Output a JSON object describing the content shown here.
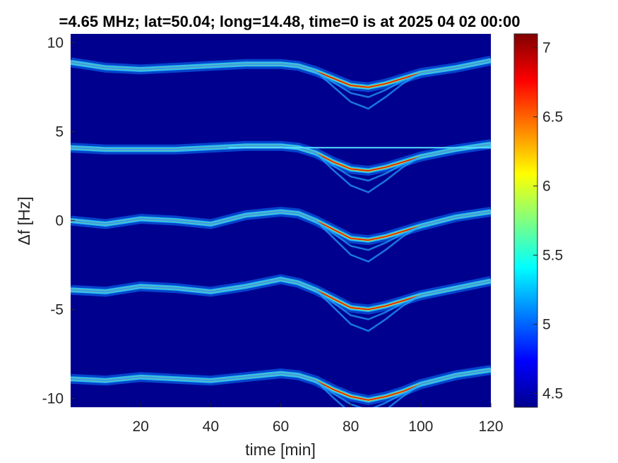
{
  "chart_data": {
    "type": "heatmap",
    "title": "=4.65 MHz;  lat=50.04; long=14.48, time=0 is at 2025 04 02 00:00",
    "xlabel": "time [min]",
    "ylabel": "Δf [Hz]",
    "xlim": [
      0,
      120
    ],
    "ylim": [
      -10.5,
      10.5
    ],
    "x_ticks": [
      20,
      40,
      60,
      80,
      100,
      120
    ],
    "x_tick_labels": [
      "20",
      "40",
      "60",
      "80",
      "100",
      "120"
    ],
    "y_ticks": [
      10,
      5,
      0,
      -5,
      -10
    ],
    "y_tick_labels": [
      "10",
      "5",
      "0",
      "-5",
      "-10"
    ],
    "colorbar": {
      "colormap": "jet",
      "range": [
        4.4,
        7.1
      ],
      "ticks": [
        7,
        6.5,
        6,
        5.5,
        5,
        4.5
      ],
      "tick_labels": [
        "7",
        "6.5",
        "6",
        "5.5",
        "5",
        "4.5"
      ]
    },
    "background_color": "#00008f",
    "series": [
      {
        "offset": 9,
        "x": [
          0,
          10,
          20,
          30,
          40,
          50,
          60,
          65,
          70,
          75,
          80,
          85,
          90,
          95,
          100,
          110,
          120
        ],
        "y": [
          8.9,
          8.6,
          8.5,
          8.6,
          8.7,
          8.8,
          8.8,
          8.7,
          8.4,
          8.0,
          7.6,
          7.5,
          7.7,
          8.0,
          8.3,
          8.6,
          9.0
        ]
      },
      {
        "offset": 4,
        "x": [
          0,
          10,
          20,
          30,
          40,
          50,
          60,
          65,
          70,
          75,
          80,
          85,
          90,
          95,
          100,
          110,
          120
        ],
        "y": [
          4.1,
          4.0,
          4.0,
          4.0,
          4.1,
          4.2,
          4.2,
          4.1,
          3.8,
          3.3,
          2.9,
          2.8,
          3.0,
          3.3,
          3.6,
          4.0,
          4.3
        ]
      },
      {
        "offset": 0,
        "x": [
          0,
          10,
          20,
          30,
          40,
          50,
          60,
          65,
          70,
          75,
          80,
          85,
          90,
          95,
          100,
          110,
          120
        ],
        "y": [
          0.0,
          -0.2,
          0.1,
          0.0,
          -0.2,
          0.3,
          0.5,
          0.4,
          0.0,
          -0.5,
          -1.0,
          -1.1,
          -0.9,
          -0.6,
          -0.3,
          0.2,
          0.5
        ]
      },
      {
        "offset": -4,
        "x": [
          0,
          10,
          20,
          30,
          40,
          50,
          60,
          65,
          70,
          75,
          80,
          85,
          90,
          95,
          100,
          110,
          120
        ],
        "y": [
          -3.9,
          -4.0,
          -3.7,
          -3.8,
          -4.0,
          -3.7,
          -3.3,
          -3.5,
          -3.9,
          -4.4,
          -4.9,
          -5.0,
          -4.8,
          -4.5,
          -4.2,
          -3.8,
          -3.4
        ]
      },
      {
        "offset": -9,
        "x": [
          0,
          10,
          20,
          30,
          40,
          50,
          60,
          65,
          70,
          75,
          80,
          85,
          90,
          95,
          100,
          110,
          120
        ],
        "y": [
          -8.9,
          -9.0,
          -8.8,
          -8.9,
          -9.0,
          -8.8,
          -8.6,
          -8.7,
          -9.0,
          -9.5,
          -9.9,
          -10.1,
          -9.9,
          -9.6,
          -9.2,
          -8.7,
          -8.4
        ]
      }
    ],
    "notes": "horizontal artifact line at 4.1 Hz from ~45 to 120 min; secondary weaker traces below main traces between 72 and 95 min",
    "artifact_line": {
      "y": 4.1,
      "x_start": 45,
      "x_end": 120
    }
  }
}
